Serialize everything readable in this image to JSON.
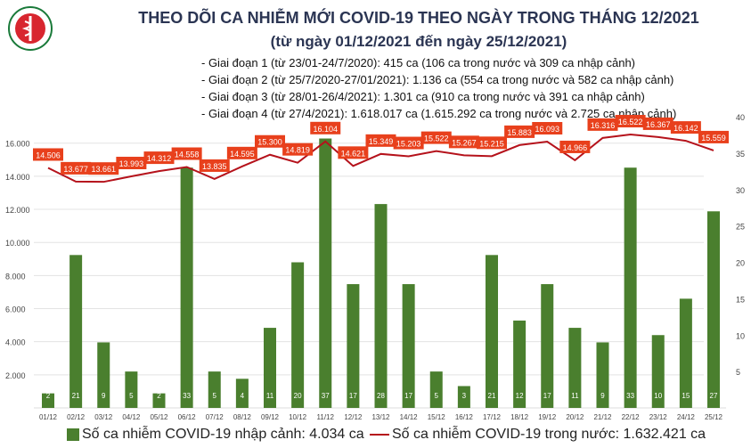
{
  "header": {
    "title": "THEO DÕI CA NHIỄM MỚI COVID-19 THEO NGÀY TRONG THÁNG 12/2021",
    "subtitle": "(từ ngày 01/12/2021 đến ngày 25/12/2021)",
    "logo_text": "BỘ Y TẾ - MINISTRY OF HEALTH",
    "stages": [
      "- Giai đoạn 1 (từ 23/01-24/7/2020): 415 ca (106 ca trong nước và 309 ca nhập cảnh)",
      "- Giai đoạn 2 (từ 25/7/2020-27/01/2021): 1.136 ca (554 ca trong nước và 582 ca nhập cảnh)",
      "- Giai đoạn 3 (từ 28/01-26/4/2021): 1.301 ca (910 ca trong nước và 391 ca nhập cảnh)",
      "- Giai đoạn 4 (từ 27/4/2021): 1.618.017 ca (1.615.292 ca trong nước và 2.725 ca nhập cảnh)"
    ]
  },
  "chart_data": {
    "type": "bar+line",
    "categories": [
      "01/12",
      "02/12",
      "03/12",
      "04/12",
      "05/12",
      "06/12",
      "07/12",
      "08/12",
      "09/12",
      "10/12",
      "11/12",
      "12/12",
      "13/12",
      "14/12",
      "15/12",
      "16/12",
      "17/12",
      "18/12",
      "19/12",
      "20/12",
      "21/12",
      "22/12",
      "23/12",
      "24/12",
      "25/12"
    ],
    "series": [
      {
        "name": "Số ca nhiễm COVID-19 nhập cảnh: 4.034 ca",
        "type": "bar",
        "axis": "right",
        "color": "#4a7f2e",
        "values": [
          2,
          21,
          9,
          5,
          2,
          33,
          5,
          4,
          11,
          20,
          37,
          17,
          28,
          17,
          5,
          3,
          21,
          12,
          17,
          11,
          9,
          33,
          10,
          15,
          27
        ]
      },
      {
        "name": "Số ca nhiễm COVID-19 trong nước: 1.632.421 ca",
        "type": "line",
        "axis": "left",
        "color": "#b5121b",
        "label_color": "#e8401c",
        "values": [
          14506,
          13677,
          13661,
          13993,
          14312,
          14558,
          13835,
          14595,
          15300,
          14819,
          16104,
          14621,
          15349,
          15203,
          15522,
          15267,
          15215,
          15883,
          16093,
          14966,
          16316,
          16522,
          16367,
          16142,
          15559
        ],
        "labels": [
          "14.506",
          "13.677",
          "13.661",
          "13.993",
          "14.312",
          "14.558",
          "13.835",
          "14.595",
          "15.300",
          "14.819",
          "16.104",
          "14.621",
          "15.349",
          "15.203",
          "15.522",
          "15.267",
          "15.215",
          "15.883",
          "16.093",
          "14.966",
          "16.316",
          "16.522",
          "16.367",
          "16.142",
          "15.559"
        ]
      }
    ],
    "left_axis": {
      "ticks": [
        "2.000",
        "4.000",
        "6.000",
        "8.000",
        "10.000",
        "12.000",
        "14.000",
        "16.000"
      ],
      "tick_values": [
        2000,
        4000,
        6000,
        8000,
        10000,
        12000,
        14000,
        16000
      ],
      "ylim": [
        0,
        17600
      ]
    },
    "right_axis": {
      "ticks": [
        "5",
        "10",
        "15",
        "20",
        "25",
        "30",
        "35",
        "40"
      ],
      "tick_values": [
        5,
        10,
        15,
        20,
        25,
        30,
        35,
        40
      ],
      "ylim": [
        0,
        40
      ]
    },
    "grid": true,
    "legend_position": "bottom"
  }
}
